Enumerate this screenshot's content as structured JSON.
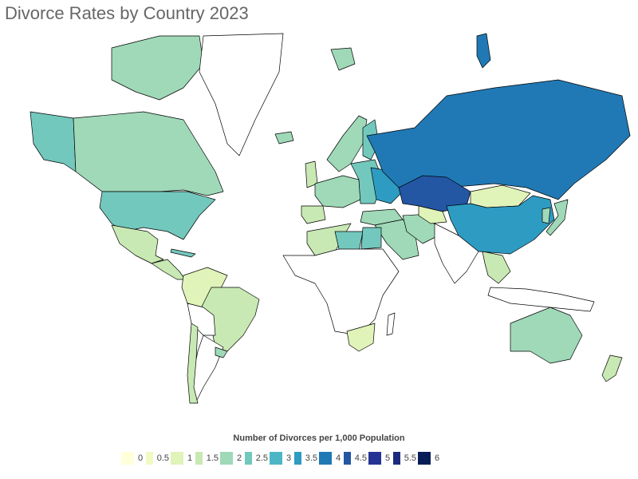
{
  "title": "Divorce Rates by Country 2023",
  "legend": {
    "title": "Number of Divorces per 1,000 Population",
    "items": [
      {
        "label": "0",
        "color": "#ffffd9"
      },
      {
        "label": "0.5",
        "color": "#f1f9c4"
      },
      {
        "label": "1",
        "color": "#e0f3b9"
      },
      {
        "label": "1.5",
        "color": "#c8e9b3"
      },
      {
        "label": "2",
        "color": "#9fd9b8"
      },
      {
        "label": "2.5",
        "color": "#73c8bd"
      },
      {
        "label": "3",
        "color": "#4db6c4"
      },
      {
        "label": "3.5",
        "color": "#2e9bc2"
      },
      {
        "label": "4",
        "color": "#2079b4"
      },
      {
        "label": "4.5",
        "color": "#2356a3"
      },
      {
        "label": "5",
        "color": "#253494"
      },
      {
        "label": "5.5",
        "color": "#1c2a7d"
      },
      {
        "label": "6",
        "color": "#081d58"
      }
    ]
  },
  "regions": [
    {
      "name": "usa",
      "color": "#73c8bd"
    },
    {
      "name": "canada",
      "color": "#9fd9b8"
    },
    {
      "name": "alaska",
      "color": "#73c8bd"
    },
    {
      "name": "mexico",
      "color": "#c8e9b3"
    },
    {
      "name": "central-america",
      "color": "#c8e9b3"
    },
    {
      "name": "greenland",
      "color": "#ffffff"
    },
    {
      "name": "colombia-venezuela",
      "color": "#e0f3b9"
    },
    {
      "name": "brazil",
      "color": "#c8e9b3"
    },
    {
      "name": "peru-bolivia",
      "color": "#ffffff"
    },
    {
      "name": "chile",
      "color": "#c8e9b3"
    },
    {
      "name": "argentina",
      "color": "#ffffff"
    },
    {
      "name": "uruguay",
      "color": "#9fd9b8"
    },
    {
      "name": "iceland",
      "color": "#9fd9b8"
    },
    {
      "name": "scandinavia",
      "color": "#9fd9b8"
    },
    {
      "name": "finland",
      "color": "#73c8bd"
    },
    {
      "name": "uk",
      "color": "#c8e9b3"
    },
    {
      "name": "western-europe",
      "color": "#9fd9b8"
    },
    {
      "name": "iberia",
      "color": "#c8e9b3"
    },
    {
      "name": "eastern-europe",
      "color": "#73c8bd"
    },
    {
      "name": "ukraine-belarus",
      "color": "#2e9bc2"
    },
    {
      "name": "russia",
      "color": "#2079b4"
    },
    {
      "name": "kazakhstan",
      "color": "#2356a3"
    },
    {
      "name": "mongolia",
      "color": "#e0f3b9"
    },
    {
      "name": "china",
      "color": "#2e9bc2"
    },
    {
      "name": "japan",
      "color": "#9fd9b8"
    },
    {
      "name": "korea",
      "color": "#9fd9b8"
    },
    {
      "name": "turkey",
      "color": "#9fd9b8"
    },
    {
      "name": "middle-east",
      "color": "#9fd9b8"
    },
    {
      "name": "iran",
      "color": "#9fd9b8"
    },
    {
      "name": "central-asia",
      "color": "#e0f3b9"
    },
    {
      "name": "south-asia",
      "color": "#ffffff"
    },
    {
      "name": "north-africa-west",
      "color": "#c8e9b3"
    },
    {
      "name": "libya",
      "color": "#73c8bd"
    },
    {
      "name": "egypt",
      "color": "#73c8bd"
    },
    {
      "name": "sub-saharan-africa",
      "color": "#ffffff"
    },
    {
      "name": "south-africa",
      "color": "#e0f3b9"
    },
    {
      "name": "madagascar",
      "color": "#ffffff"
    },
    {
      "name": "southeast-asia",
      "color": "#c8e9b3"
    },
    {
      "name": "indonesia",
      "color": "#ffffff"
    },
    {
      "name": "australia",
      "color": "#9fd9b8"
    },
    {
      "name": "new-zealand",
      "color": "#c8e9b3"
    },
    {
      "name": "arctic-canada",
      "color": "#9fd9b8"
    },
    {
      "name": "novaya-zemlya",
      "color": "#2079b4"
    },
    {
      "name": "svalbard",
      "color": "#9fd9b8"
    },
    {
      "name": "cuba",
      "color": "#73c8bd"
    }
  ]
}
